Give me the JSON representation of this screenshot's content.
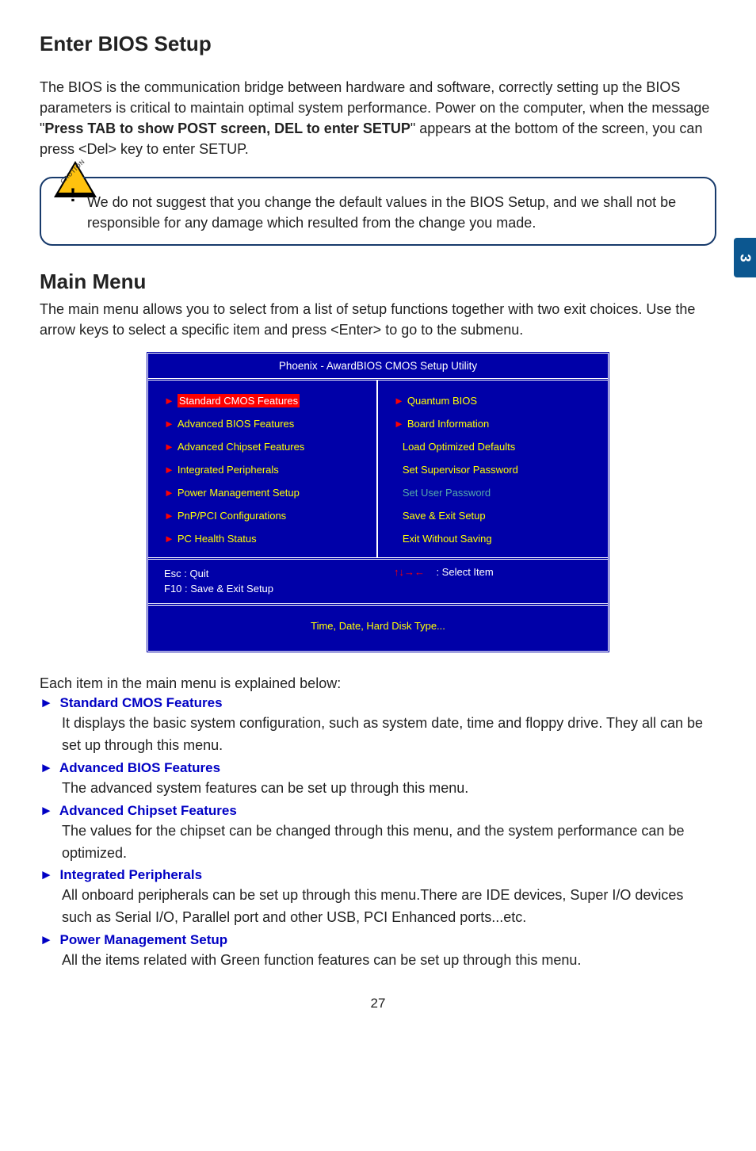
{
  "page_tab": "3",
  "section_title": "Enter BIOS Setup",
  "intro_para_1a": "The BIOS is the communication bridge between hardware and software, correctly setting up the BIOS parameters is critical to maintain optimal system performance. Power on the computer, when the message \"",
  "intro_para_1b_bold": "Press TAB to show POST screen, DEL to enter SETUP",
  "intro_para_1c": "\" appears at the bottom of the screen, you can press <Del> key to enter SETUP.",
  "caution_label": "CAUTION",
  "caution_text": "We do not suggest that you change the default values in the BIOS Setup, and we shall not be responsible for any damage which resulted from the change you made.",
  "main_menu_title": "Main Menu",
  "main_menu_para": "The main menu allows you to select from a list of setup functions together with two exit choices. Use the arrow keys to select a specific item and press <Enter> to go to the submenu.",
  "bios": {
    "bg_color": "#0000a8",
    "title_color": "#ffffff",
    "link_color": "#ffff00",
    "muted_color": "#54a8a8",
    "arrow_color": "#ff0000",
    "highlight_bg": "#ff0000",
    "title": "Phoenix - AwardBIOS CMOS Setup Utility",
    "left": [
      {
        "arrow": true,
        "label": "Standard CMOS Features",
        "highlight": true,
        "color": "#ffff00"
      },
      {
        "arrow": true,
        "label": "Advanced BIOS Features",
        "color": "#ffff00"
      },
      {
        "arrow": true,
        "label": "Advanced Chipset Features",
        "color": "#ffff00"
      },
      {
        "arrow": true,
        "label": "Integrated Peripherals",
        "color": "#ffff00"
      },
      {
        "arrow": true,
        "label": "Power Management Setup",
        "color": "#ffff00"
      },
      {
        "arrow": true,
        "label": "PnP/PCI Configurations",
        "color": "#ffff00"
      },
      {
        "arrow": true,
        "label": "PC Health Status",
        "color": "#ffff00"
      }
    ],
    "right": [
      {
        "arrow": true,
        "label": "Quantum BIOS",
        "color": "#ffff00"
      },
      {
        "arrow": true,
        "label": "Board Information",
        "color": "#ffff00"
      },
      {
        "arrow": false,
        "label": "Load Optimized Defaults",
        "color": "#ffff00"
      },
      {
        "arrow": false,
        "label": "Set Supervisor Password",
        "color": "#ffff00"
      },
      {
        "arrow": false,
        "label": "Set User Password",
        "color": "#54a8a8"
      },
      {
        "arrow": false,
        "label": "Save & Exit Setup",
        "color": "#ffff00"
      },
      {
        "arrow": false,
        "label": "Exit Without Saving",
        "color": "#ffff00"
      }
    ],
    "footer_left_l1": "Esc : Quit",
    "footer_left_l2": "F10 : Save & Exit Setup",
    "footer_right_arrows": "↑↓→←",
    "footer_right_label": ": Select Item",
    "footer_bottom": "Time, Date, Hard Disk Type..."
  },
  "explain_intro": "Each item in the main menu is explained below:",
  "items": [
    {
      "head": "Standard CMOS Features",
      "desc": "It displays the basic system configuration, such as system date, time and floppy drive. They all can be set up through this menu."
    },
    {
      "head": "Advanced BIOS Features",
      "desc": "The advanced system features can be set up through this menu."
    },
    {
      "head": "Advanced Chipset Features",
      "desc": "The values for the chipset can be changed through this menu, and the system performance can be optimized."
    },
    {
      "head": "Integrated Peripherals",
      "desc": "All onboard peripherals can be set up through this menu.There are IDE devices, Super I/O devices such as Serial I/O, Parallel port and other USB, PCI Enhanced ports...etc."
    },
    {
      "head": "Power Management Setup",
      "desc": "All the items related with Green function features can be set up through this menu."
    }
  ],
  "page_number": "27"
}
